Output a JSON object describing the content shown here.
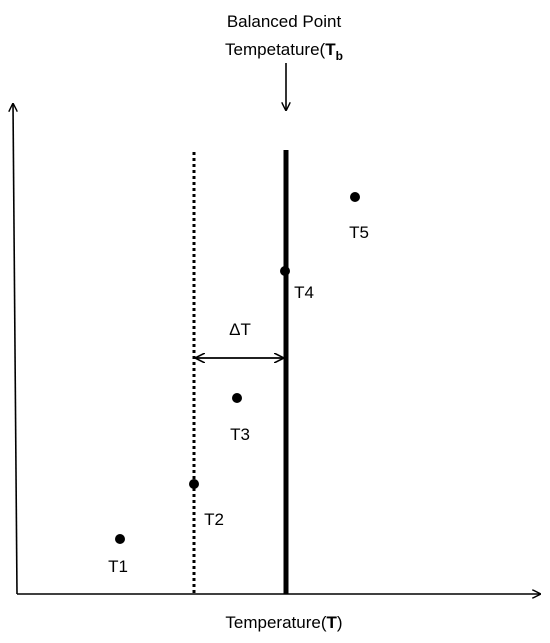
{
  "annotation": {
    "line1": "Balanced Point",
    "line2_prefix": "Tempetature(",
    "line2_symbol": "T",
    "line2_subscript": "b"
  },
  "x_axis": {
    "label_prefix": "Temperature(",
    "label_symbol": "T",
    "label_suffix": ")"
  },
  "delta_label": "ΔT",
  "points": [
    {
      "id": "T1",
      "label": "T1"
    },
    {
      "id": "T2",
      "label": "T2"
    },
    {
      "id": "T3",
      "label": "T3"
    },
    {
      "id": "T4",
      "label": "T4"
    },
    {
      "id": "T5",
      "label": "T5"
    }
  ],
  "colors": {
    "ink": "#000000",
    "background": "#ffffff"
  }
}
